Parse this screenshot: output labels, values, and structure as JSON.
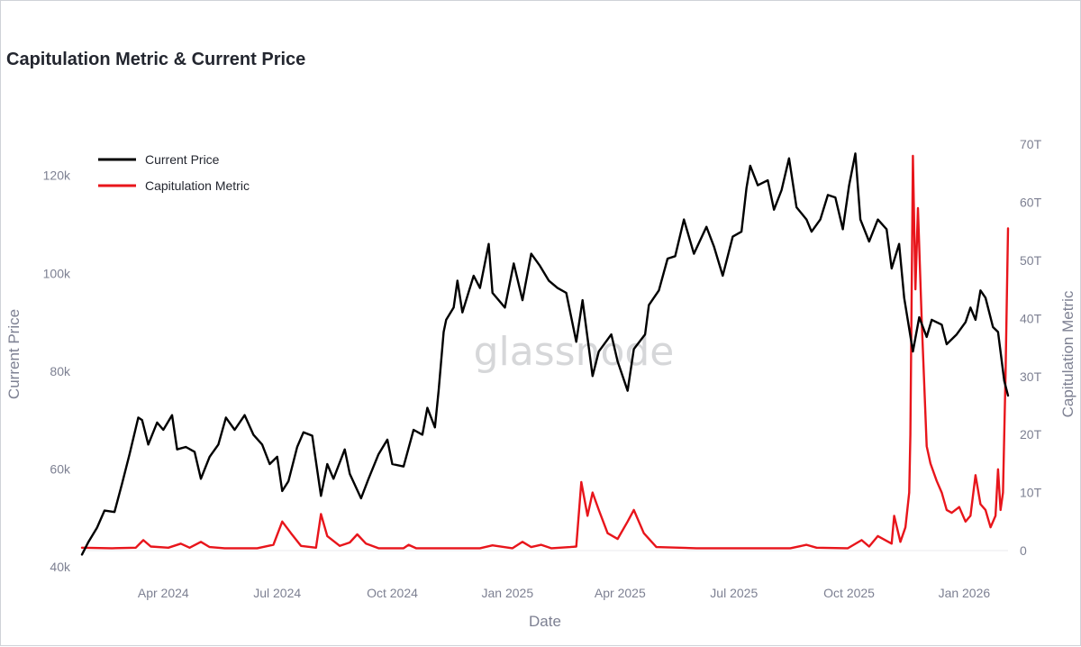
{
  "chart_data": {
    "type": "line",
    "title": "Capitulation Metric & Current Price",
    "xlabel": "Date",
    "ylabel_left": "Current Price",
    "ylabel_right": "Capitulation Metric",
    "watermark": "glassnode",
    "x_range": [
      "2024-01-27",
      "2026-02-05"
    ],
    "y_left_range": [
      40000,
      124000
    ],
    "y_right_range": [
      0,
      68
    ],
    "x_ticks": [
      {
        "label": "Apr 2024",
        "date": "2024-04-01"
      },
      {
        "label": "Jul 2024",
        "date": "2024-07-01"
      },
      {
        "label": "Oct 2024",
        "date": "2024-10-01"
      },
      {
        "label": "Jan 2025",
        "date": "2025-01-01"
      },
      {
        "label": "Apr 2025",
        "date": "2025-04-01"
      },
      {
        "label": "Jul 2025",
        "date": "2025-07-01"
      },
      {
        "label": "Oct 2025",
        "date": "2025-10-01"
      },
      {
        "label": "Jan 2026",
        "date": "2026-01-01"
      }
    ],
    "y_left_ticks": [
      {
        "label": "40k",
        "value": 40000
      },
      {
        "label": "60k",
        "value": 60000
      },
      {
        "label": "80k",
        "value": 80000
      },
      {
        "label": "100k",
        "value": 100000
      },
      {
        "label": "120k",
        "value": 120000
      }
    ],
    "y_right_ticks": [
      {
        "label": "0",
        "value": 0
      },
      {
        "label": "10T",
        "value": 10
      },
      {
        "label": "20T",
        "value": 20
      },
      {
        "label": "30T",
        "value": 30
      },
      {
        "label": "40T",
        "value": 40
      },
      {
        "label": "50T",
        "value": 50
      },
      {
        "label": "60T",
        "value": 60
      },
      {
        "label": "70T",
        "value": 70
      }
    ],
    "legend": {
      "placement": "top-left"
    },
    "series": [
      {
        "name": "Current Price",
        "axis": "left",
        "color": "#000000",
        "points": [
          [
            "2024-01-27",
            42500
          ],
          [
            "2024-02-01",
            45000
          ],
          [
            "2024-02-08",
            48000
          ],
          [
            "2024-02-14",
            51500
          ],
          [
            "2024-02-22",
            51200
          ],
          [
            "2024-02-28",
            57000
          ],
          [
            "2024-03-05",
            63000
          ],
          [
            "2024-03-12",
            70500
          ],
          [
            "2024-03-15",
            70000
          ],
          [
            "2024-03-20",
            65000
          ],
          [
            "2024-03-27",
            69500
          ],
          [
            "2024-04-01",
            68000
          ],
          [
            "2024-04-08",
            71000
          ],
          [
            "2024-04-12",
            64000
          ],
          [
            "2024-04-19",
            64500
          ],
          [
            "2024-04-26",
            63500
          ],
          [
            "2024-05-01",
            58000
          ],
          [
            "2024-05-08",
            62500
          ],
          [
            "2024-05-15",
            65000
          ],
          [
            "2024-05-21",
            70500
          ],
          [
            "2024-05-28",
            68000
          ],
          [
            "2024-06-05",
            71000
          ],
          [
            "2024-06-12",
            67000
          ],
          [
            "2024-06-19",
            65000
          ],
          [
            "2024-06-25",
            61000
          ],
          [
            "2024-07-01",
            62500
          ],
          [
            "2024-07-05",
            55500
          ],
          [
            "2024-07-10",
            57500
          ],
          [
            "2024-07-17",
            64500
          ],
          [
            "2024-07-22",
            67500
          ],
          [
            "2024-07-29",
            66800
          ],
          [
            "2024-08-05",
            54500
          ],
          [
            "2024-08-10",
            61000
          ],
          [
            "2024-08-15",
            58000
          ],
          [
            "2024-08-24",
            64000
          ],
          [
            "2024-08-28",
            59000
          ],
          [
            "2024-09-06",
            54000
          ],
          [
            "2024-09-12",
            58000
          ],
          [
            "2024-09-20",
            63000
          ],
          [
            "2024-09-27",
            66000
          ],
          [
            "2024-10-01",
            61000
          ],
          [
            "2024-10-10",
            60500
          ],
          [
            "2024-10-18",
            68000
          ],
          [
            "2024-10-25",
            67000
          ],
          [
            "2024-10-29",
            72500
          ],
          [
            "2024-11-04",
            68500
          ],
          [
            "2024-11-07",
            76000
          ],
          [
            "2024-11-11",
            88000
          ],
          [
            "2024-11-13",
            90500
          ],
          [
            "2024-11-19",
            93000
          ],
          [
            "2024-11-22",
            98500
          ],
          [
            "2024-11-26",
            92000
          ],
          [
            "2024-12-05",
            99500
          ],
          [
            "2024-12-10",
            97000
          ],
          [
            "2024-12-17",
            106000
          ],
          [
            "2024-12-20",
            96000
          ],
          [
            "2024-12-30",
            93000
          ],
          [
            "2025-01-06",
            102000
          ],
          [
            "2025-01-13",
            94500
          ],
          [
            "2025-01-20",
            104000
          ],
          [
            "2025-01-27",
            101500
          ],
          [
            "2025-02-03",
            98500
          ],
          [
            "2025-02-10",
            97000
          ],
          [
            "2025-02-17",
            96000
          ],
          [
            "2025-02-25",
            86000
          ],
          [
            "2025-03-02",
            94500
          ],
          [
            "2025-03-10",
            79000
          ],
          [
            "2025-03-15",
            84000
          ],
          [
            "2025-03-25",
            87500
          ],
          [
            "2025-03-30",
            82000
          ],
          [
            "2025-04-07",
            76000
          ],
          [
            "2025-04-12",
            84500
          ],
          [
            "2025-04-21",
            87500
          ],
          [
            "2025-04-24",
            93500
          ],
          [
            "2025-05-02",
            96500
          ],
          [
            "2025-05-09",
            103000
          ],
          [
            "2025-05-15",
            103500
          ],
          [
            "2025-05-22",
            111000
          ],
          [
            "2025-05-30",
            104000
          ],
          [
            "2025-06-09",
            109500
          ],
          [
            "2025-06-15",
            105500
          ],
          [
            "2025-06-22",
            99500
          ],
          [
            "2025-06-30",
            107500
          ],
          [
            "2025-07-07",
            108500
          ],
          [
            "2025-07-11",
            117500
          ],
          [
            "2025-07-14",
            122000
          ],
          [
            "2025-07-20",
            118000
          ],
          [
            "2025-07-28",
            119000
          ],
          [
            "2025-08-02",
            113000
          ],
          [
            "2025-08-08",
            117000
          ],
          [
            "2025-08-14",
            123500
          ],
          [
            "2025-08-20",
            113500
          ],
          [
            "2025-08-28",
            111000
          ],
          [
            "2025-09-01",
            108500
          ],
          [
            "2025-09-08",
            111000
          ],
          [
            "2025-09-14",
            116000
          ],
          [
            "2025-09-20",
            115500
          ],
          [
            "2025-09-26",
            109000
          ],
          [
            "2025-10-01",
            118000
          ],
          [
            "2025-10-06",
            124500
          ],
          [
            "2025-10-10",
            111000
          ],
          [
            "2025-10-17",
            106500
          ],
          [
            "2025-10-24",
            111000
          ],
          [
            "2025-10-31",
            109000
          ],
          [
            "2025-11-04",
            101000
          ],
          [
            "2025-11-10",
            106000
          ],
          [
            "2025-11-14",
            95000
          ],
          [
            "2025-11-21",
            84000
          ],
          [
            "2025-11-26",
            91000
          ],
          [
            "2025-12-02",
            87000
          ],
          [
            "2025-12-06",
            90500
          ],
          [
            "2025-12-14",
            89500
          ],
          [
            "2025-12-18",
            85500
          ],
          [
            "2025-12-26",
            87500
          ],
          [
            "2026-01-02",
            90000
          ],
          [
            "2026-01-06",
            93000
          ],
          [
            "2026-01-10",
            90500
          ],
          [
            "2026-01-14",
            96500
          ],
          [
            "2026-01-18",
            95000
          ],
          [
            "2026-01-24",
            89000
          ],
          [
            "2026-01-28",
            88000
          ],
          [
            "2026-02-02",
            78000
          ],
          [
            "2026-02-05",
            75000
          ]
        ]
      },
      {
        "name": "Capitulation Metric",
        "axis": "right",
        "color": "#e8151b",
        "points": [
          [
            "2024-01-27",
            0.5
          ],
          [
            "2024-02-20",
            0.4
          ],
          [
            "2024-03-10",
            0.5
          ],
          [
            "2024-03-16",
            1.8
          ],
          [
            "2024-03-22",
            0.7
          ],
          [
            "2024-04-05",
            0.5
          ],
          [
            "2024-04-15",
            1.2
          ],
          [
            "2024-04-22",
            0.5
          ],
          [
            "2024-05-01",
            1.5
          ],
          [
            "2024-05-08",
            0.6
          ],
          [
            "2024-05-20",
            0.4
          ],
          [
            "2024-06-15",
            0.4
          ],
          [
            "2024-06-28",
            1.0
          ],
          [
            "2024-07-05",
            5.0
          ],
          [
            "2024-07-12",
            3.0
          ],
          [
            "2024-07-20",
            0.8
          ],
          [
            "2024-08-01",
            0.5
          ],
          [
            "2024-08-05",
            6.3
          ],
          [
            "2024-08-10",
            2.5
          ],
          [
            "2024-08-20",
            0.8
          ],
          [
            "2024-08-28",
            1.4
          ],
          [
            "2024-09-03",
            2.8
          ],
          [
            "2024-09-10",
            1.2
          ],
          [
            "2024-09-20",
            0.4
          ],
          [
            "2024-10-10",
            0.4
          ],
          [
            "2024-10-14",
            1.0
          ],
          [
            "2024-10-20",
            0.4
          ],
          [
            "2024-12-10",
            0.4
          ],
          [
            "2024-12-20",
            0.9
          ],
          [
            "2025-01-05",
            0.4
          ],
          [
            "2025-01-13",
            1.5
          ],
          [
            "2025-01-20",
            0.6
          ],
          [
            "2025-01-28",
            1.0
          ],
          [
            "2025-02-05",
            0.4
          ],
          [
            "2025-02-20",
            0.6
          ],
          [
            "2025-02-25",
            0.7
          ],
          [
            "2025-03-01",
            11.8
          ],
          [
            "2025-03-06",
            6.0
          ],
          [
            "2025-03-10",
            10.0
          ],
          [
            "2025-03-15",
            7.0
          ],
          [
            "2025-03-22",
            3.0
          ],
          [
            "2025-03-30",
            2.0
          ],
          [
            "2025-04-07",
            5.0
          ],
          [
            "2025-04-12",
            7.0
          ],
          [
            "2025-04-20",
            3.0
          ],
          [
            "2025-04-30",
            0.6
          ],
          [
            "2025-06-01",
            0.4
          ],
          [
            "2025-07-15",
            0.4
          ],
          [
            "2025-08-15",
            0.4
          ],
          [
            "2025-08-28",
            1.0
          ],
          [
            "2025-09-05",
            0.5
          ],
          [
            "2025-09-30",
            0.4
          ],
          [
            "2025-10-11",
            1.8
          ],
          [
            "2025-10-17",
            0.7
          ],
          [
            "2025-10-24",
            2.5
          ],
          [
            "2025-11-04",
            1.2
          ],
          [
            "2025-11-06",
            6.0
          ],
          [
            "2025-11-11",
            1.5
          ],
          [
            "2025-11-15",
            4.0
          ],
          [
            "2025-11-18",
            10.0
          ],
          [
            "2025-11-19",
            20.0
          ],
          [
            "2025-11-21",
            68.0
          ],
          [
            "2025-11-23",
            45.0
          ],
          [
            "2025-11-25",
            59.0
          ],
          [
            "2025-11-28",
            40.0
          ],
          [
            "2025-12-02",
            18.0
          ],
          [
            "2025-12-05",
            15.0
          ],
          [
            "2025-12-10",
            12.0
          ],
          [
            "2025-12-14",
            10.0
          ],
          [
            "2025-12-18",
            7.0
          ],
          [
            "2025-12-22",
            6.5
          ],
          [
            "2025-12-28",
            7.5
          ],
          [
            "2026-01-02",
            5.0
          ],
          [
            "2026-01-06",
            6.0
          ],
          [
            "2026-01-10",
            13.0
          ],
          [
            "2026-01-14",
            8.0
          ],
          [
            "2026-01-18",
            7.0
          ],
          [
            "2026-01-22",
            4.0
          ],
          [
            "2026-01-26",
            6.0
          ],
          [
            "2026-01-28",
            14.0
          ],
          [
            "2026-01-30",
            7.0
          ],
          [
            "2026-02-01",
            10.0
          ],
          [
            "2026-02-03",
            30.0
          ],
          [
            "2026-02-05",
            55.5
          ]
        ]
      }
    ]
  }
}
